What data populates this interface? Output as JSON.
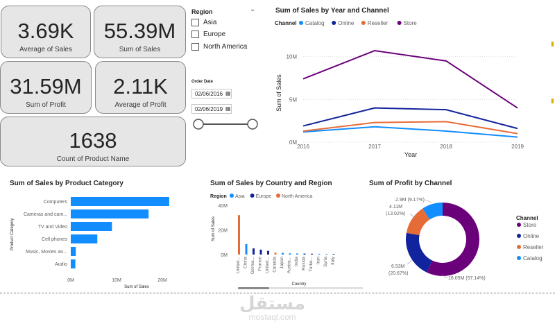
{
  "kpis": {
    "avg_sales": {
      "value": "3.69K",
      "label": "Average of Sales"
    },
    "sum_sales": {
      "value": "55.39M",
      "label": "Sum of Sales"
    },
    "sum_profit": {
      "value": "31.59M",
      "label": "Sum of Profit"
    },
    "avg_profit": {
      "value": "2.11K",
      "label": "Average of Profit"
    },
    "count_products": {
      "value": "1638",
      "label": "Count of Product Name"
    }
  },
  "region_slicer": {
    "title": "Region",
    "options": [
      {
        "label": "Asia",
        "checked": false
      },
      {
        "label": "Europe",
        "checked": false
      },
      {
        "label": "North America",
        "checked": false
      }
    ]
  },
  "date_slicer": {
    "title": "Order Date",
    "start": "02/06/2016",
    "end": "02/06/2019",
    "range_start_fraction": 0,
    "range_end_fraction": 1
  },
  "colors": {
    "store": "#6b007b",
    "online": "#12239e",
    "reseller": "#e66c37",
    "catalog": "#118dff"
  },
  "watermark": {
    "arabic": "مستقل",
    "latin": "mostaql.com"
  },
  "chart_data": [
    {
      "id": "line",
      "type": "line",
      "title": "Sum of Sales by Year and Channel",
      "legend_title": "Channel",
      "xlabel": "Year",
      "ylabel": "Sum of Sales",
      "x": [
        "2016",
        "2017",
        "2018",
        "2019"
      ],
      "ylim": [
        0,
        12
      ],
      "yticks": [
        {
          "v": 0,
          "label": "0M"
        },
        {
          "v": 5,
          "label": "5M"
        },
        {
          "v": 10,
          "label": "10M"
        }
      ],
      "series": [
        {
          "name": "Catalog",
          "color": "#118dff",
          "values": [
            1.2,
            1.8,
            1.3,
            0.6
          ]
        },
        {
          "name": "Online",
          "color": "#12239e",
          "values": [
            1.9,
            4.0,
            3.8,
            1.6
          ]
        },
        {
          "name": "Reseller",
          "color": "#e66c37",
          "values": [
            1.3,
            2.3,
            2.4,
            1.0
          ]
        },
        {
          "name": "Store",
          "color": "#6b007b",
          "values": [
            7.4,
            10.7,
            9.5,
            4.0
          ]
        }
      ]
    },
    {
      "id": "category",
      "type": "bar",
      "orientation": "horizontal",
      "title": "Sum of Sales by Product Category",
      "xlabel": "Sum of Sales",
      "ylabel": "Product Category",
      "categories": [
        "Computers",
        "Cameras and cam...",
        "TV and Video",
        "Cell phones",
        "Music, Movies an...",
        "Audio"
      ],
      "values": [
        21.5,
        17.0,
        9.0,
        5.8,
        1.1,
        1.0
      ],
      "xlim": [
        0,
        25
      ],
      "xticks": [
        {
          "v": 0,
          "label": "0M"
        },
        {
          "v": 10,
          "label": "10M"
        },
        {
          "v": 20,
          "label": "20M"
        }
      ],
      "color": "#118dff"
    },
    {
      "id": "country",
      "type": "bar",
      "title": "Sum of Sales by Country and Region",
      "legend_title": "Region",
      "legend": [
        {
          "name": "Asia",
          "color": "#118dff"
        },
        {
          "name": "Europe",
          "color": "#12239e"
        },
        {
          "name": "North America",
          "color": "#e66c37"
        }
      ],
      "xlabel": "Country",
      "ylabel": "Sum of Sales",
      "ylim": [
        0,
        40
      ],
      "yticks": [
        {
          "v": 0,
          "label": "0M"
        },
        {
          "v": 20,
          "label": "20M"
        },
        {
          "v": 40,
          "label": "40M"
        }
      ],
      "categories": [
        "United...",
        "China",
        "Germa...",
        "France",
        "United...",
        "Canada",
        "Japan",
        "Austra...",
        "India",
        "Russia",
        "Turke...",
        "Iran",
        "Syria",
        "Italy"
      ],
      "regions": [
        "North America",
        "Asia",
        "Europe",
        "Europe",
        "Europe",
        "North America",
        "Asia",
        "Asia",
        "Asia",
        "Europe",
        "Europe",
        "Asia",
        "Asia",
        "Europe"
      ],
      "values": [
        32.0,
        8.5,
        5.0,
        4.0,
        3.0,
        1.5,
        1.3,
        1.0,
        0.9,
        0.8,
        0.7,
        0.6,
        0.5,
        0.5
      ]
    },
    {
      "id": "donut",
      "type": "pie",
      "title": "Sum of Profit by Channel",
      "legend_title": "Channel",
      "slices": [
        {
          "name": "Store",
          "value": 18.05,
          "label": "18.05M (57.14%)",
          "color": "#6b007b"
        },
        {
          "name": "Online",
          "value": 6.53,
          "label": "6.53M",
          "pct": "(20.67%)",
          "color": "#12239e"
        },
        {
          "name": "Reseller",
          "value": 4.11,
          "label": "4.11M",
          "pct": "(13.02%)",
          "color": "#e66c37"
        },
        {
          "name": "Catalog",
          "value": 2.9,
          "label": "2.9M (9.17%)",
          "color": "#118dff"
        }
      ]
    }
  ]
}
